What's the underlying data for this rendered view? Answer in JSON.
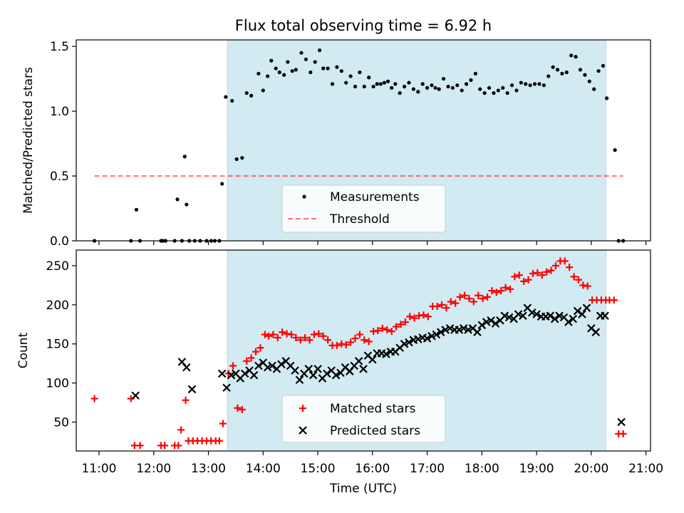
{
  "title": "Flux total observing time = 6.92 h",
  "colors": {
    "observing_span": "#add8e6",
    "measurements": "#000000",
    "threshold": "#ff0000",
    "matched": "#ff0000",
    "predicted": "#000000"
  },
  "chart_data": [
    {
      "type": "scatter",
      "title": "Flux total observing time = 6.92 h",
      "xlabel": "",
      "ylabel": "Matched/Predicted stars",
      "xlim": [
        "10:35",
        "21:05"
      ],
      "ylim": [
        0,
        1.55
      ],
      "yticks": [
        0.0,
        0.5,
        1.0,
        1.5
      ],
      "yticklabels": [
        "0.0",
        "0.5",
        "1.0",
        "1.5"
      ],
      "grid": false,
      "legend_position": "lower center",
      "observing_span": [
        "13:21",
        "20:16"
      ],
      "threshold": {
        "name": "Threshold",
        "value": 0.5,
        "x_range": [
          "10:55",
          "20:35"
        ],
        "style": "dashed"
      },
      "series": [
        {
          "name": "Measurements",
          "x": [
            "10:55",
            "11:35",
            "11:41",
            "11:45",
            "12:08",
            "12:10",
            "12:13",
            "12:23",
            "12:26",
            "12:31",
            "12:34",
            "12:36",
            "12:39",
            "12:45",
            "12:51",
            "12:58",
            "13:03",
            "13:07",
            "13:12",
            "13:15",
            "13:19",
            "13:26",
            "13:31",
            "13:37",
            "13:42",
            "13:47",
            "13:55",
            "14:00",
            "14:05",
            "14:09",
            "14:14",
            "14:18",
            "14:23",
            "14:27",
            "14:32",
            "14:36",
            "14:42",
            "14:47",
            "14:52",
            "14:57",
            "15:02",
            "15:06",
            "15:11",
            "15:16",
            "15:21",
            "15:26",
            "15:31",
            "15:36",
            "15:41",
            "15:46",
            "15:51",
            "15:56",
            "16:01",
            "16:05",
            "16:09",
            "16:13",
            "16:17",
            "16:21",
            "16:25",
            "16:30",
            "16:35",
            "16:40",
            "16:45",
            "16:50",
            "16:55",
            "17:00",
            "17:05",
            "17:09",
            "17:13",
            "17:18",
            "17:23",
            "17:28",
            "17:33",
            "17:38",
            "17:43",
            "17:48",
            "17:53",
            "17:58",
            "18:03",
            "18:08",
            "18:13",
            "18:18",
            "18:23",
            "18:28",
            "18:33",
            "18:38",
            "18:43",
            "18:48",
            "18:53",
            "18:58",
            "19:03",
            "19:08",
            "19:13",
            "19:18",
            "19:23",
            "19:28",
            "19:33",
            "19:38",
            "19:43",
            "19:48",
            "19:53",
            "19:58",
            "20:03",
            "20:08",
            "20:13",
            "20:17",
            "20:26",
            "20:30",
            "20:35"
          ],
          "y": [
            0.0,
            0.0,
            0.24,
            0.0,
            0.0,
            0.0,
            0.0,
            0.0,
            0.32,
            0.0,
            0.65,
            0.28,
            0.0,
            0.0,
            0.0,
            0.0,
            0.0,
            0.0,
            0.0,
            0.44,
            1.11,
            1.08,
            0.63,
            0.64,
            1.14,
            1.12,
            1.29,
            1.16,
            1.27,
            1.39,
            1.33,
            1.3,
            1.28,
            1.38,
            1.31,
            1.32,
            1.45,
            1.4,
            1.3,
            1.38,
            1.47,
            1.33,
            1.33,
            1.21,
            1.34,
            1.31,
            1.22,
            1.27,
            1.19,
            1.3,
            1.19,
            1.26,
            1.19,
            1.21,
            1.21,
            1.22,
            1.23,
            1.18,
            1.21,
            1.14,
            1.19,
            1.22,
            1.17,
            1.15,
            1.21,
            1.18,
            1.2,
            1.18,
            1.17,
            1.25,
            1.19,
            1.18,
            1.2,
            1.16,
            1.21,
            1.24,
            1.29,
            1.17,
            1.14,
            1.18,
            1.14,
            1.16,
            1.18,
            1.14,
            1.2,
            1.16,
            1.22,
            1.21,
            1.2,
            1.21,
            1.21,
            1.2,
            1.27,
            1.34,
            1.32,
            1.29,
            1.3,
            1.43,
            1.42,
            1.32,
            1.28,
            1.23,
            1.17,
            1.31,
            1.35,
            1.1,
            0.7,
            0.0,
            0.0
          ]
        }
      ]
    },
    {
      "type": "scatter",
      "xlabel": "Time (UTC)",
      "ylabel": "Count",
      "xlim": [
        "10:35",
        "21:05"
      ],
      "ylim": [
        13,
        270
      ],
      "yticks": [
        50,
        100,
        150,
        200,
        250
      ],
      "xticks": [
        "11:00",
        "12:00",
        "13:00",
        "14:00",
        "15:00",
        "16:00",
        "17:00",
        "18:00",
        "19:00",
        "20:00",
        "21:00"
      ],
      "grid": false,
      "legend_position": "lower center",
      "observing_span": [
        "13:21",
        "20:16"
      ],
      "series": [
        {
          "name": "Matched stars",
          "marker": "+",
          "x": [
            "10:55",
            "11:35",
            "11:39",
            "11:45",
            "12:08",
            "12:12",
            "12:23",
            "12:27",
            "12:30",
            "12:35",
            "12:38",
            "12:43",
            "12:48",
            "12:53",
            "12:58",
            "13:03",
            "13:08",
            "13:12",
            "13:16",
            "13:22",
            "13:27",
            "13:32",
            "13:37",
            "13:42",
            "13:47",
            "13:52",
            "13:57",
            "14:02",
            "14:06",
            "14:11",
            "14:16",
            "14:21",
            "14:26",
            "14:31",
            "14:36",
            "14:41",
            "14:46",
            "14:51",
            "14:56",
            "15:01",
            "15:06",
            "15:11",
            "15:16",
            "15:21",
            "15:26",
            "15:31",
            "15:36",
            "15:41",
            "15:46",
            "15:51",
            "15:56",
            "16:01",
            "16:06",
            "16:11",
            "16:16",
            "16:21",
            "16:26",
            "16:31",
            "16:36",
            "16:41",
            "16:46",
            "16:51",
            "16:56",
            "17:01",
            "17:06",
            "17:11",
            "17:16",
            "17:21",
            "17:26",
            "17:31",
            "17:36",
            "17:41",
            "17:46",
            "17:51",
            "17:56",
            "18:01",
            "18:06",
            "18:11",
            "18:16",
            "18:21",
            "18:26",
            "18:31",
            "18:36",
            "18:41",
            "18:46",
            "18:51",
            "18:56",
            "19:01",
            "19:06",
            "19:11",
            "19:16",
            "19:21",
            "19:26",
            "19:31",
            "19:36",
            "19:41",
            "19:46",
            "19:51",
            "19:56",
            "20:01",
            "20:06",
            "20:11",
            "20:16",
            "20:20",
            "20:25",
            "20:30",
            "20:35"
          ],
          "y": [
            80,
            80,
            20,
            20,
            20,
            20,
            20,
            20,
            40,
            78,
            26,
            26,
            26,
            26,
            26,
            26,
            26,
            26,
            48,
            112,
            122,
            68,
            66,
            128,
            132,
            140,
            145,
            162,
            160,
            162,
            158,
            165,
            163,
            162,
            158,
            155,
            158,
            155,
            162,
            163,
            160,
            155,
            148,
            148,
            150,
            149,
            152,
            157,
            162,
            155,
            153,
            166,
            167,
            170,
            168,
            166,
            172,
            175,
            178,
            185,
            183,
            186,
            187,
            185,
            198,
            198,
            200,
            196,
            204,
            202,
            210,
            212,
            208,
            204,
            212,
            208,
            210,
            218,
            216,
            218,
            222,
            220,
            236,
            238,
            230,
            232,
            240,
            241,
            238,
            242,
            244,
            250,
            256,
            256,
            248,
            236,
            232,
            225,
            224,
            206,
            206,
            206,
            206,
            206,
            206,
            35,
            35
          ]
        },
        {
          "name": "Predicted stars",
          "marker": "x",
          "x": [
            "11:40",
            "12:31",
            "12:36",
            "12:42",
            "13:15",
            "13:20",
            "13:25",
            "13:30",
            "13:35",
            "13:40",
            "13:45",
            "13:50",
            "13:55",
            "14:00",
            "14:05",
            "14:10",
            "14:15",
            "14:20",
            "14:25",
            "14:30",
            "14:35",
            "14:40",
            "14:45",
            "14:50",
            "14:55",
            "15:00",
            "15:05",
            "15:10",
            "15:15",
            "15:20",
            "15:25",
            "15:30",
            "15:35",
            "15:40",
            "15:45",
            "15:50",
            "15:55",
            "16:00",
            "16:05",
            "16:10",
            "16:15",
            "16:20",
            "16:25",
            "16:30",
            "16:35",
            "16:40",
            "16:45",
            "16:50",
            "16:55",
            "17:00",
            "17:05",
            "17:10",
            "17:15",
            "17:20",
            "17:25",
            "17:30",
            "17:35",
            "17:40",
            "17:45",
            "17:50",
            "17:55",
            "18:00",
            "18:05",
            "18:10",
            "18:15",
            "18:20",
            "18:25",
            "18:30",
            "18:35",
            "18:40",
            "18:45",
            "18:50",
            "18:55",
            "19:00",
            "19:05",
            "19:10",
            "19:15",
            "19:20",
            "19:25",
            "19:30",
            "19:35",
            "19:40",
            "19:45",
            "19:50",
            "19:55",
            "20:00",
            "20:05",
            "20:10",
            "20:15",
            "20:33"
          ],
          "y": [
            84,
            127,
            120,
            92,
            112,
            94,
            110,
            112,
            106,
            112,
            116,
            110,
            122,
            126,
            120,
            122,
            118,
            124,
            128,
            122,
            116,
            104,
            112,
            118,
            110,
            118,
            106,
            112,
            116,
            110,
            113,
            120,
            115,
            122,
            128,
            118,
            135,
            130,
            138,
            138,
            137,
            140,
            140,
            145,
            150,
            152,
            155,
            156,
            158,
            157,
            160,
            162,
            165,
            168,
            170,
            168,
            168,
            170,
            168,
            170,
            165,
            174,
            178,
            180,
            176,
            180,
            186,
            184,
            182,
            188,
            186,
            196,
            190,
            188,
            185,
            185,
            186,
            182,
            186,
            184,
            178,
            182,
            192,
            188,
            196,
            170,
            165,
            186,
            186,
            50
          ]
        }
      ]
    }
  ]
}
